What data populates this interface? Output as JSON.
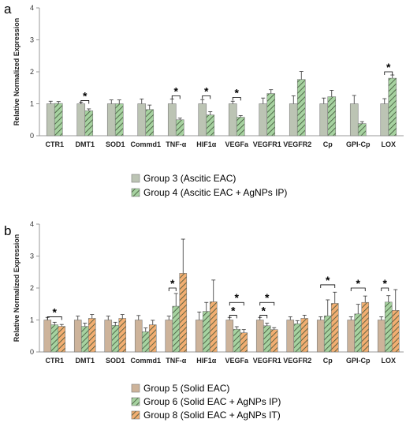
{
  "colors": {
    "group3": "#bcc4b4",
    "group4": "#a6d2a0",
    "group5": "#cdb39a",
    "group6": "#a6d2a0",
    "group8": "#f2ae72",
    "hatch": "#3d5236",
    "axis": "#999999",
    "error": "#333333"
  },
  "chart_data": [
    {
      "panel": "a",
      "type": "bar",
      "ylabel": "Relative Normalized Expression",
      "ylim": [
        0,
        4
      ],
      "yticks": [
        "0",
        "1",
        "2",
        "3",
        "4"
      ],
      "categories": [
        "CTR1",
        "DMT1",
        "SOD1",
        "Commd1",
        "TNF-α",
        "HIF1α",
        "VEGFa",
        "VEGFR1",
        "VEGFR2",
        "Cp",
        "GPI-Cp",
        "LOX"
      ],
      "series": [
        {
          "name": "Group 3 (Ascitic EAC)",
          "color_key": "group3",
          "hatched": false,
          "values": [
            1.0,
            1.0,
            1.0,
            1.0,
            1.0,
            1.0,
            1.0,
            1.0,
            1.0,
            1.0,
            1.0,
            1.0
          ],
          "errors": [
            0.08,
            0.05,
            0.12,
            0.15,
            0.15,
            0.13,
            0.08,
            0.18,
            0.25,
            0.18,
            0.26,
            0.16
          ]
        },
        {
          "name": "Group 4 (Ascitic EAC + AgNPs IP)",
          "color_key": "group4",
          "hatched": true,
          "values": [
            1.01,
            0.78,
            1.0,
            0.82,
            0.5,
            0.65,
            0.58,
            1.32,
            1.76,
            1.22,
            0.38,
            1.8
          ],
          "errors": [
            0.06,
            0.06,
            0.12,
            0.14,
            0.05,
            0.1,
            0.05,
            0.12,
            0.25,
            0.2,
            0.06,
            0.1
          ]
        }
      ],
      "significance": [
        {
          "category": 1,
          "from": 0,
          "to": 1,
          "level": 1.1,
          "label": "*"
        },
        {
          "category": 4,
          "from": 0,
          "to": 1,
          "level": 1.25,
          "label": "*"
        },
        {
          "category": 5,
          "from": 0,
          "to": 1,
          "level": 1.25,
          "label": "*"
        },
        {
          "category": 6,
          "from": 0,
          "to": 1,
          "level": 1.2,
          "label": "*"
        },
        {
          "category": 11,
          "from": 0,
          "to": 1,
          "level": 2.0,
          "label": "*"
        }
      ]
    },
    {
      "panel": "b",
      "type": "bar",
      "ylabel": "Relative Normalized Expression",
      "ylim": [
        0,
        4
      ],
      "yticks": [
        "0",
        "1",
        "2",
        "3",
        "4"
      ],
      "categories": [
        "CTR1",
        "DMT1",
        "SOD1",
        "Commd1",
        "TNF-α",
        "HIF1α",
        "VEGFa",
        "VEGFR1",
        "VEGFR2",
        "Cp",
        "GPI-Cp",
        "LOX"
      ],
      "series": [
        {
          "name": "Group 5 (Solid EAC)",
          "color_key": "group5",
          "hatched": false,
          "values": [
            1.0,
            1.0,
            1.0,
            1.0,
            1.0,
            1.0,
            1.0,
            1.0,
            1.0,
            1.0,
            1.0,
            1.0
          ],
          "errors": [
            0.08,
            0.12,
            0.12,
            0.14,
            0.12,
            0.25,
            0.08,
            0.08,
            0.1,
            0.1,
            0.1,
            0.1
          ]
        },
        {
          "name": "Group 6 (Solid EAC + AgNPs IP)",
          "color_key": "group6",
          "hatched": true,
          "values": [
            0.85,
            0.8,
            0.83,
            0.63,
            1.43,
            1.27,
            0.71,
            0.82,
            0.88,
            1.13,
            1.19,
            1.56
          ],
          "errors": [
            0.08,
            0.1,
            0.1,
            0.12,
            0.4,
            0.28,
            0.08,
            0.08,
            0.1,
            0.5,
            0.3,
            0.2
          ]
        },
        {
          "name": "Group 8 (Solid EAC + AgNPs IT)",
          "color_key": "group8",
          "hatched": true,
          "values": [
            0.8,
            1.05,
            1.05,
            0.85,
            2.46,
            1.57,
            0.6,
            0.7,
            1.05,
            1.52,
            1.55,
            1.3
          ],
          "errors": [
            0.06,
            0.12,
            0.12,
            0.14,
            1.07,
            0.68,
            0.1,
            0.06,
            0.1,
            0.35,
            0.2,
            0.65
          ]
        }
      ],
      "significance": [
        {
          "category": 0,
          "from": 0,
          "to": 2,
          "level": 1.1,
          "label": "*"
        },
        {
          "category": 4,
          "from": 0,
          "to": 1,
          "level": 2.0,
          "label": "*"
        },
        {
          "category": 6,
          "from": 0,
          "to": 1,
          "level": 1.15,
          "label": "*"
        },
        {
          "category": 6,
          "from": 0,
          "to": 2,
          "level": 1.55,
          "label": "*"
        },
        {
          "category": 7,
          "from": 0,
          "to": 1,
          "level": 1.15,
          "label": "*"
        },
        {
          "category": 7,
          "from": 0,
          "to": 2,
          "level": 1.55,
          "label": "*"
        },
        {
          "category": 9,
          "from": 0,
          "to": 2,
          "level": 2.1,
          "label": "*"
        },
        {
          "category": 10,
          "from": 0,
          "to": 2,
          "level": 2.0,
          "label": "*"
        },
        {
          "category": 11,
          "from": 0,
          "to": 1,
          "level": 2.0,
          "label": "*"
        }
      ]
    }
  ]
}
